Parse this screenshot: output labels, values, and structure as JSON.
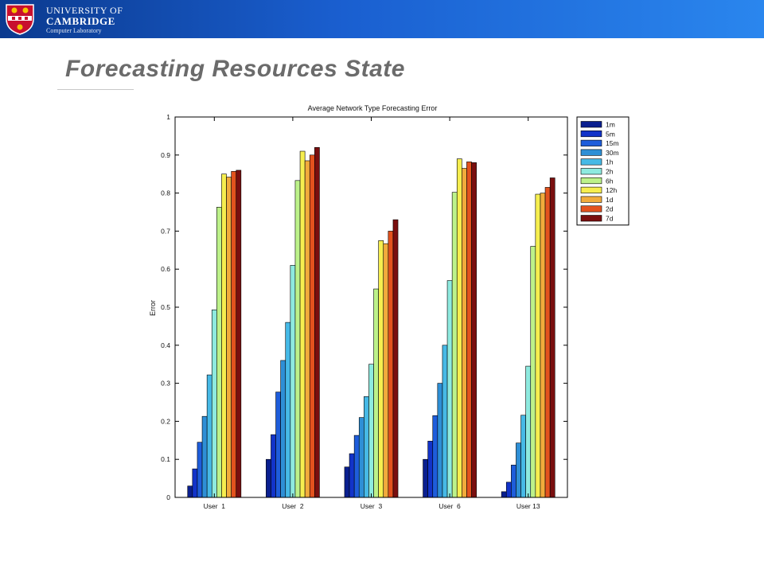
{
  "header": {
    "logo_line1": "UNIVERSITY OF",
    "logo_line2": "CAMBRIDGE",
    "logo_line3": "Computer Laboratory"
  },
  "slide": {
    "title": "Forecasting Resources State"
  },
  "chart_data": {
    "type": "bar",
    "title": "Average Network Type Forecasting Error",
    "xlabel": "",
    "ylabel": "Error",
    "ylim": [
      0,
      1
    ],
    "yticks": [
      "0",
      "0.1",
      "0.2",
      "0.3",
      "0.4",
      "0.5",
      "0.6",
      "0.7",
      "0.8",
      "0.9",
      "1"
    ],
    "categories": [
      "User  1",
      "User  2",
      "User  3",
      "User  6",
      "User 13"
    ],
    "legend_position": "outside-right-top",
    "grid": false,
    "series": [
      {
        "name": "1m",
        "color": "#0a1f8f",
        "values": [
          0.03,
          0.1,
          0.08,
          0.1,
          0.015
        ]
      },
      {
        "name": "5m",
        "color": "#1233c9",
        "values": [
          0.075,
          0.165,
          0.115,
          0.148,
          0.04
        ]
      },
      {
        "name": "15m",
        "color": "#1e5ddb",
        "values": [
          0.145,
          0.277,
          0.163,
          0.215,
          0.085
        ]
      },
      {
        "name": "30m",
        "color": "#2e8fd6",
        "values": [
          0.213,
          0.36,
          0.21,
          0.3,
          0.143
        ]
      },
      {
        "name": "1h",
        "color": "#46b9e6",
        "values": [
          0.322,
          0.46,
          0.265,
          0.4,
          0.216
        ]
      },
      {
        "name": "2h",
        "color": "#8eeadf",
        "values": [
          0.493,
          0.61,
          0.35,
          0.57,
          0.345
        ]
      },
      {
        "name": "6h",
        "color": "#bdf28a",
        "values": [
          0.763,
          0.833,
          0.548,
          0.802,
          0.66
        ]
      },
      {
        "name": "12h",
        "color": "#f6ee4f",
        "values": [
          0.85,
          0.91,
          0.675,
          0.89,
          0.797
        ]
      },
      {
        "name": "1d",
        "color": "#f1ab3c",
        "values": [
          0.842,
          0.885,
          0.667,
          0.865,
          0.8
        ]
      },
      {
        "name": "2d",
        "color": "#e3521e",
        "values": [
          0.857,
          0.9,
          0.7,
          0.882,
          0.815
        ]
      },
      {
        "name": "7d",
        "color": "#7a0f0f",
        "values": [
          0.86,
          0.92,
          0.73,
          0.88,
          0.84
        ]
      }
    ]
  }
}
